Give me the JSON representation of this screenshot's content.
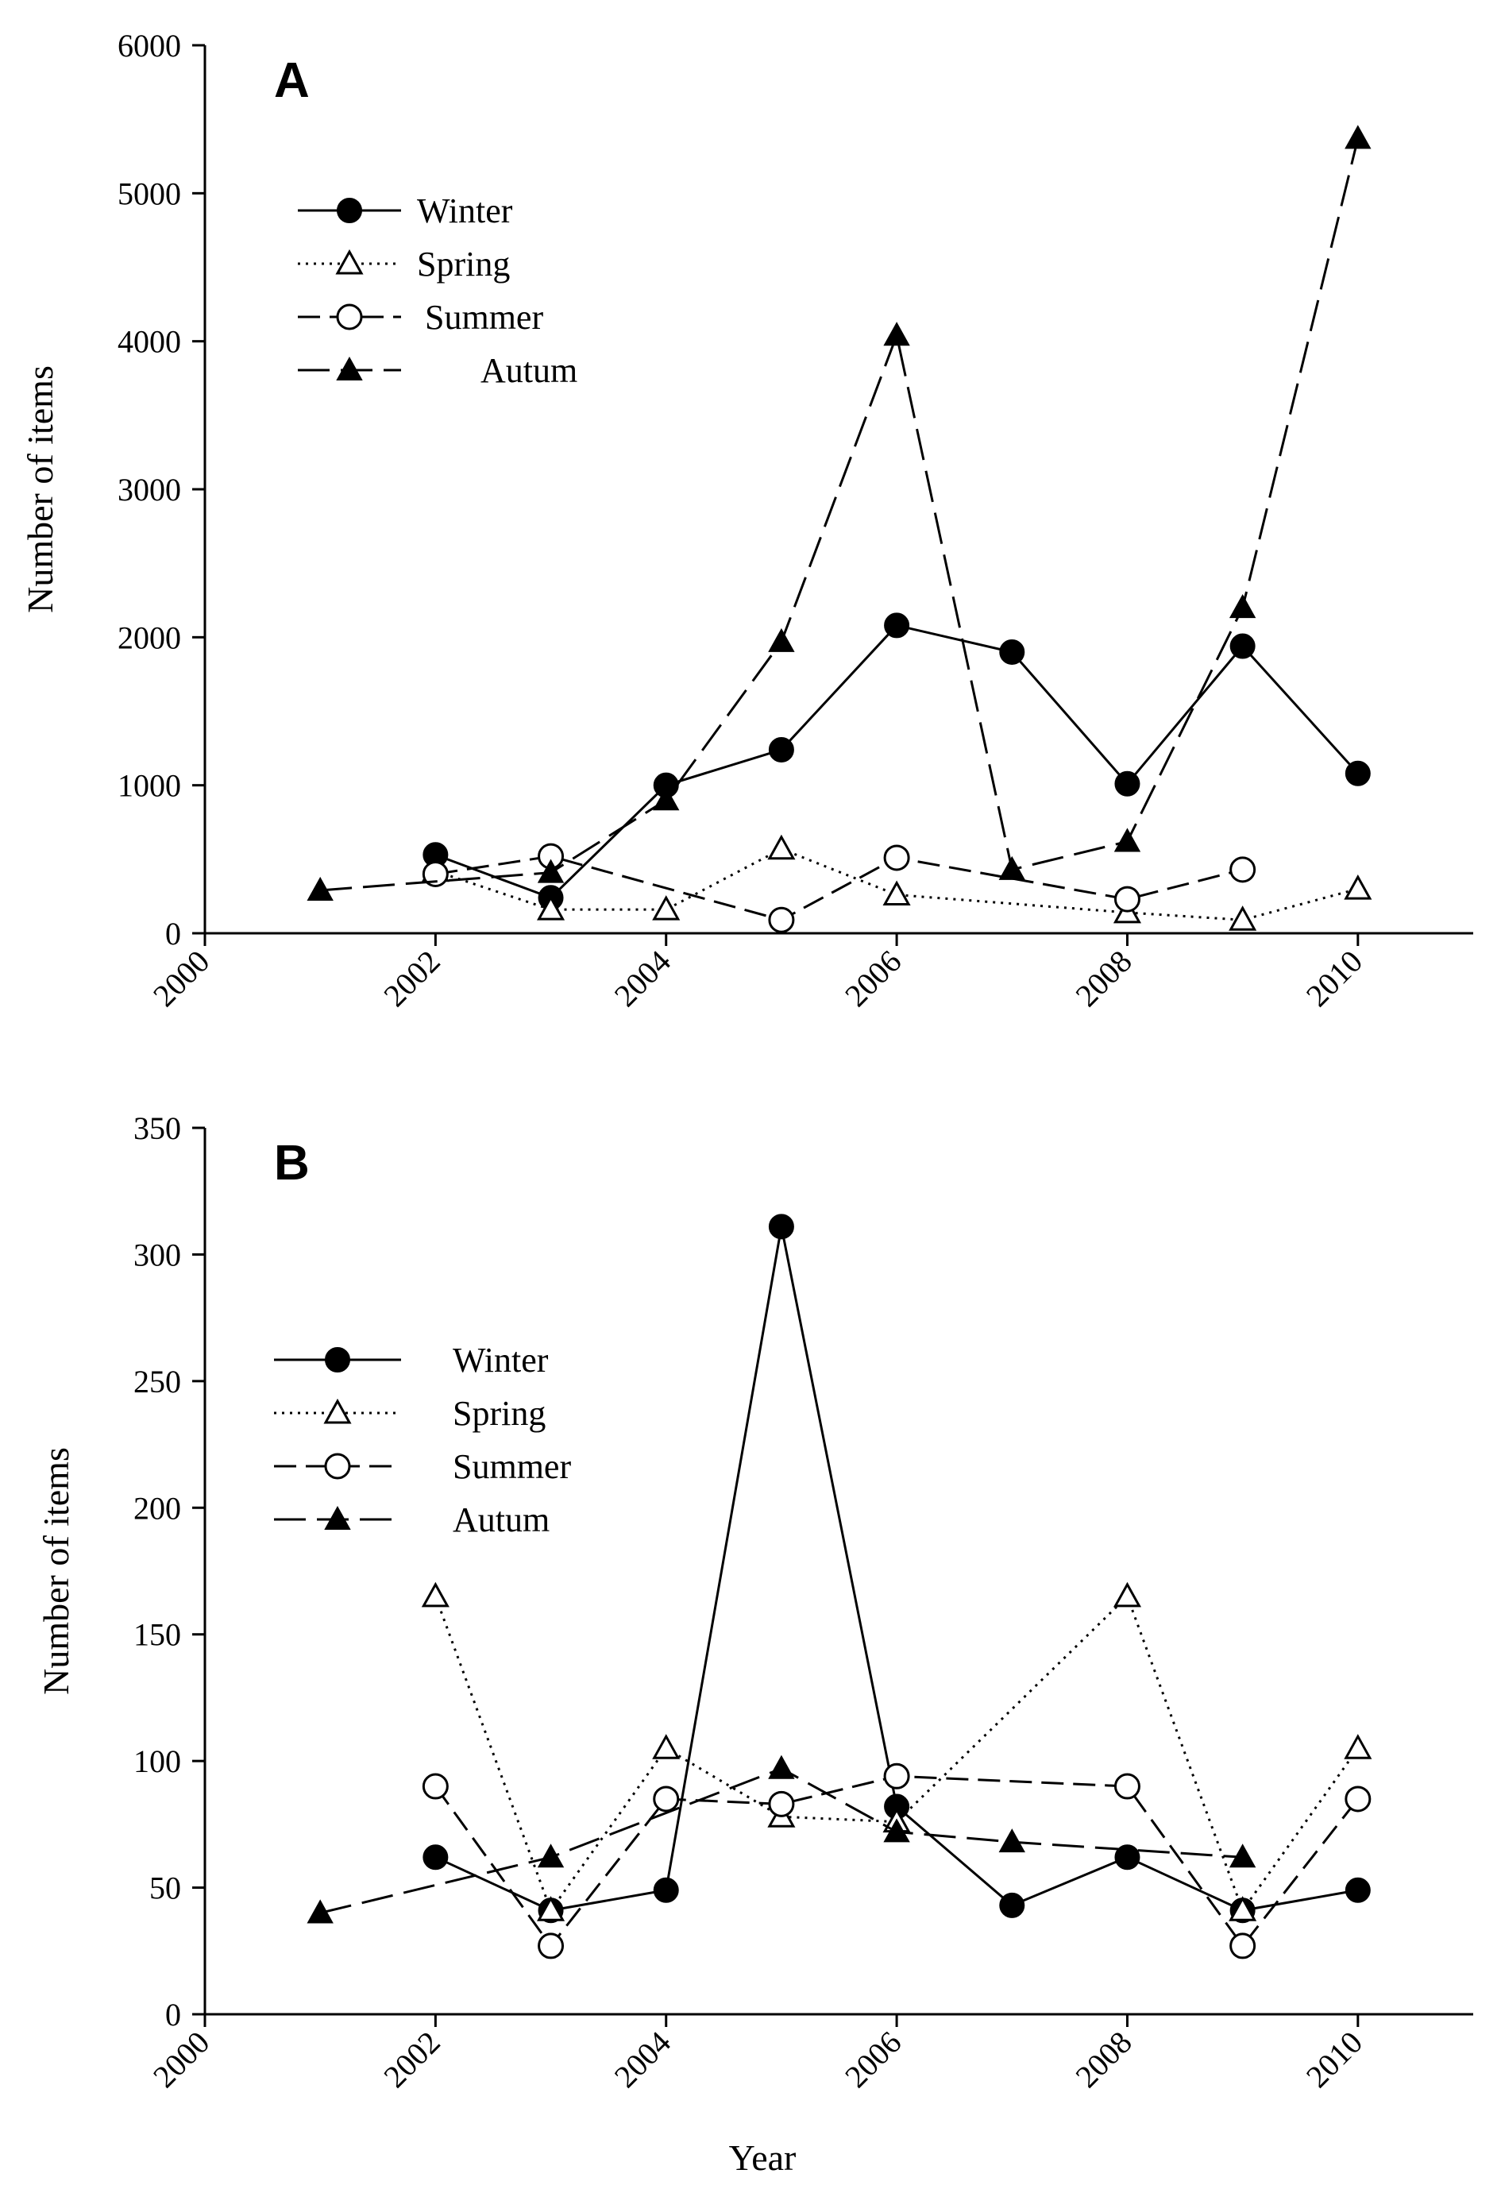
{
  "figure": {
    "xlabel": "Year"
  },
  "chart_data": [
    {
      "type": "line",
      "panel_label": "A",
      "ylabel": "Number of items",
      "xlim": [
        2000,
        2011
      ],
      "ylim": [
        0,
        6000
      ],
      "xticks": [
        "2000",
        "2002",
        "2004",
        "2006",
        "2008",
        "2010"
      ],
      "yticks": [
        "0",
        "1000",
        "2000",
        "3000",
        "4000",
        "5000",
        "6000"
      ],
      "legend_position": "upper-left",
      "series": [
        {
          "name": "Winter",
          "marker": "filled-circle",
          "line": "solid",
          "points": [
            [
              2002,
              530
            ],
            [
              2003,
              240
            ],
            [
              2004,
              1000
            ],
            [
              2005,
              1240
            ],
            [
              2006,
              2080
            ],
            [
              2007,
              1900
            ],
            [
              2008,
              1010
            ],
            [
              2009,
              1940
            ],
            [
              2010,
              1080
            ]
          ]
        },
        {
          "name": "Spring",
          "marker": "open-triangle",
          "line": "dotted",
          "points": [
            [
              2002,
              420
            ],
            [
              2003,
              160
            ],
            [
              2004,
              160
            ],
            [
              2005,
              570
            ],
            [
              2006,
              260
            ],
            [
              2008,
              140
            ],
            [
              2009,
              90
            ],
            [
              2010,
              300
            ]
          ]
        },
        {
          "name": "Summer",
          "marker": "open-circle",
          "line": "dashed",
          "points": [
            [
              2002,
              400
            ],
            [
              2003,
              520
            ],
            [
              2005,
              90
            ],
            [
              2006,
              510
            ],
            [
              2008,
              230
            ],
            [
              2009,
              430
            ]
          ]
        },
        {
          "name": "Autum",
          "marker": "filled-triangle",
          "line": "long-dashed",
          "points": [
            [
              2001,
              290
            ],
            [
              2003,
              410
            ],
            [
              2004,
              900
            ],
            [
              2005,
              1970
            ],
            [
              2006,
              4040
            ],
            [
              2007,
              430
            ],
            [
              2008,
              620
            ],
            [
              2009,
              2200
            ],
            [
              2010,
              5370
            ]
          ]
        }
      ]
    },
    {
      "type": "line",
      "panel_label": "B",
      "ylabel": "Number of items",
      "xlim": [
        2000,
        2011
      ],
      "ylim": [
        0,
        350
      ],
      "xticks": [
        "2000",
        "2002",
        "2004",
        "2006",
        "2008",
        "2010"
      ],
      "yticks": [
        "0",
        "50",
        "100",
        "150",
        "200",
        "250",
        "300",
        "350"
      ],
      "legend_position": "upper-left",
      "series": [
        {
          "name": "Winter",
          "marker": "filled-circle",
          "line": "solid",
          "points": [
            [
              2002,
              62
            ],
            [
              2003,
              41
            ],
            [
              2004,
              49
            ],
            [
              2005,
              311
            ],
            [
              2006,
              82
            ],
            [
              2007,
              43
            ],
            [
              2008,
              62
            ],
            [
              2009,
              41
            ],
            [
              2010,
              49
            ]
          ]
        },
        {
          "name": "Spring",
          "marker": "open-triangle",
          "line": "dotted",
          "points": [
            [
              2002,
              165
            ],
            [
              2003,
              41
            ],
            [
              2004,
              105
            ],
            [
              2005,
              78
            ],
            [
              2006,
              76
            ],
            [
              2008,
              165
            ],
            [
              2009,
              41
            ],
            [
              2010,
              105
            ]
          ]
        },
        {
          "name": "Summer",
          "marker": "open-circle",
          "line": "dashed",
          "points": [
            [
              2002,
              90
            ],
            [
              2003,
              27
            ],
            [
              2004,
              85
            ],
            [
              2005,
              83
            ],
            [
              2006,
              94
            ],
            [
              2008,
              90
            ],
            [
              2009,
              27
            ],
            [
              2010,
              85
            ]
          ]
        },
        {
          "name": "Autum",
          "marker": "filled-triangle",
          "line": "long-dashed",
          "points": [
            [
              2001,
              40
            ],
            [
              2003,
              62
            ],
            [
              2005,
              97
            ],
            [
              2006,
              72
            ],
            [
              2007,
              68
            ],
            [
              2009,
              62
            ]
          ]
        }
      ]
    }
  ]
}
